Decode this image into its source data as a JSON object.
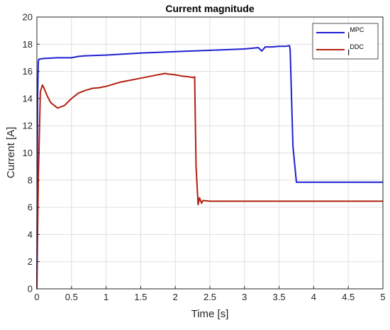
{
  "chart_data": {
    "type": "line",
    "title": "Current magnitude",
    "xlabel": "Time [s]",
    "ylabel": "Current [A]",
    "xlim": [
      0,
      5
    ],
    "ylim": [
      0,
      20
    ],
    "xticks": [
      0,
      0.5,
      1,
      1.5,
      2,
      2.5,
      3,
      3.5,
      4,
      4.5,
      5
    ],
    "yticks": [
      0,
      2,
      4,
      6,
      8,
      10,
      12,
      14,
      16,
      18,
      20
    ],
    "xtick_labels": [
      "0",
      "0.5",
      "1",
      "1.5",
      "2",
      "2.5",
      "3",
      "3.5",
      "4",
      "4.5",
      "5"
    ],
    "ytick_labels": [
      "0",
      "2",
      "4",
      "6",
      "8",
      "10",
      "12",
      "14",
      "16",
      "18",
      "20"
    ],
    "grid": true,
    "legend_position": "top-right",
    "series": [
      {
        "name_base": "I",
        "name_sup": "MPC",
        "color": "#1f1fd0",
        "x": [
          0,
          0.01,
          0.02,
          0.03,
          0.1,
          0.3,
          0.5,
          0.6,
          0.7,
          1.0,
          1.5,
          2.0,
          2.5,
          3.0,
          3.2,
          3.25,
          3.3,
          3.4,
          3.5,
          3.6,
          3.65,
          3.66,
          3.7,
          3.75,
          4.0,
          4.5,
          5.0
        ],
        "y": [
          0,
          14,
          16.7,
          16.9,
          16.95,
          17.0,
          17.0,
          17.1,
          17.15,
          17.2,
          17.35,
          17.45,
          17.55,
          17.65,
          17.75,
          17.5,
          17.8,
          17.8,
          17.85,
          17.85,
          17.9,
          17.6,
          10.5,
          7.85,
          7.85,
          7.85,
          7.85
        ]
      },
      {
        "name_base": "I",
        "name_sup": "DDC",
        "color": "#b02010",
        "x": [
          0,
          0.02,
          0.05,
          0.08,
          0.1,
          0.15,
          0.2,
          0.3,
          0.4,
          0.5,
          0.6,
          0.7,
          0.8,
          0.9,
          1.0,
          1.2,
          1.5,
          1.7,
          1.85,
          1.9,
          2.0,
          2.1,
          2.2,
          2.25,
          2.28,
          2.3,
          2.33,
          2.35,
          2.38,
          2.4,
          2.5,
          3.0,
          3.5,
          4.0,
          4.5,
          5.0
        ],
        "y": [
          0,
          8,
          14.5,
          15.0,
          14.8,
          14.2,
          13.7,
          13.3,
          13.5,
          14.0,
          14.4,
          14.6,
          14.75,
          14.8,
          14.9,
          15.2,
          15.5,
          15.7,
          15.85,
          15.8,
          15.75,
          15.65,
          15.6,
          15.55,
          15.6,
          9.0,
          6.2,
          6.7,
          6.3,
          6.5,
          6.45,
          6.45,
          6.45,
          6.45,
          6.45,
          6.45
        ]
      }
    ]
  }
}
